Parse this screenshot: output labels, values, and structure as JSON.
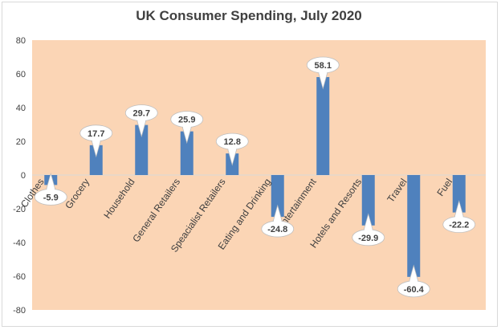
{
  "chart_data": {
    "type": "bar",
    "title": "UK Consumer Spending, July 2020",
    "categories": [
      "Clothes",
      "Grocery",
      "Household",
      "General Retailers",
      "Speacialist Retailers",
      "Eating and Drinking",
      "Entertainment",
      "Hotels and Resorts",
      "Travel",
      "Fuel"
    ],
    "values": [
      -5.9,
      17.7,
      29.7,
      25.9,
      12.8,
      -24.8,
      58.1,
      -29.9,
      -60.4,
      -22.2
    ],
    "ylim": [
      -80,
      80
    ],
    "yticks": [
      80,
      60,
      40,
      20,
      0,
      -20,
      -40,
      -60,
      -80
    ],
    "xlabel": "",
    "ylabel": "",
    "grid": false,
    "legend": "none",
    "colors": {
      "bar": "#4f81bd",
      "plot_background": "#fbd5b5",
      "label_fill": "#ffffff",
      "label_stroke": "#bfbfbf"
    }
  }
}
